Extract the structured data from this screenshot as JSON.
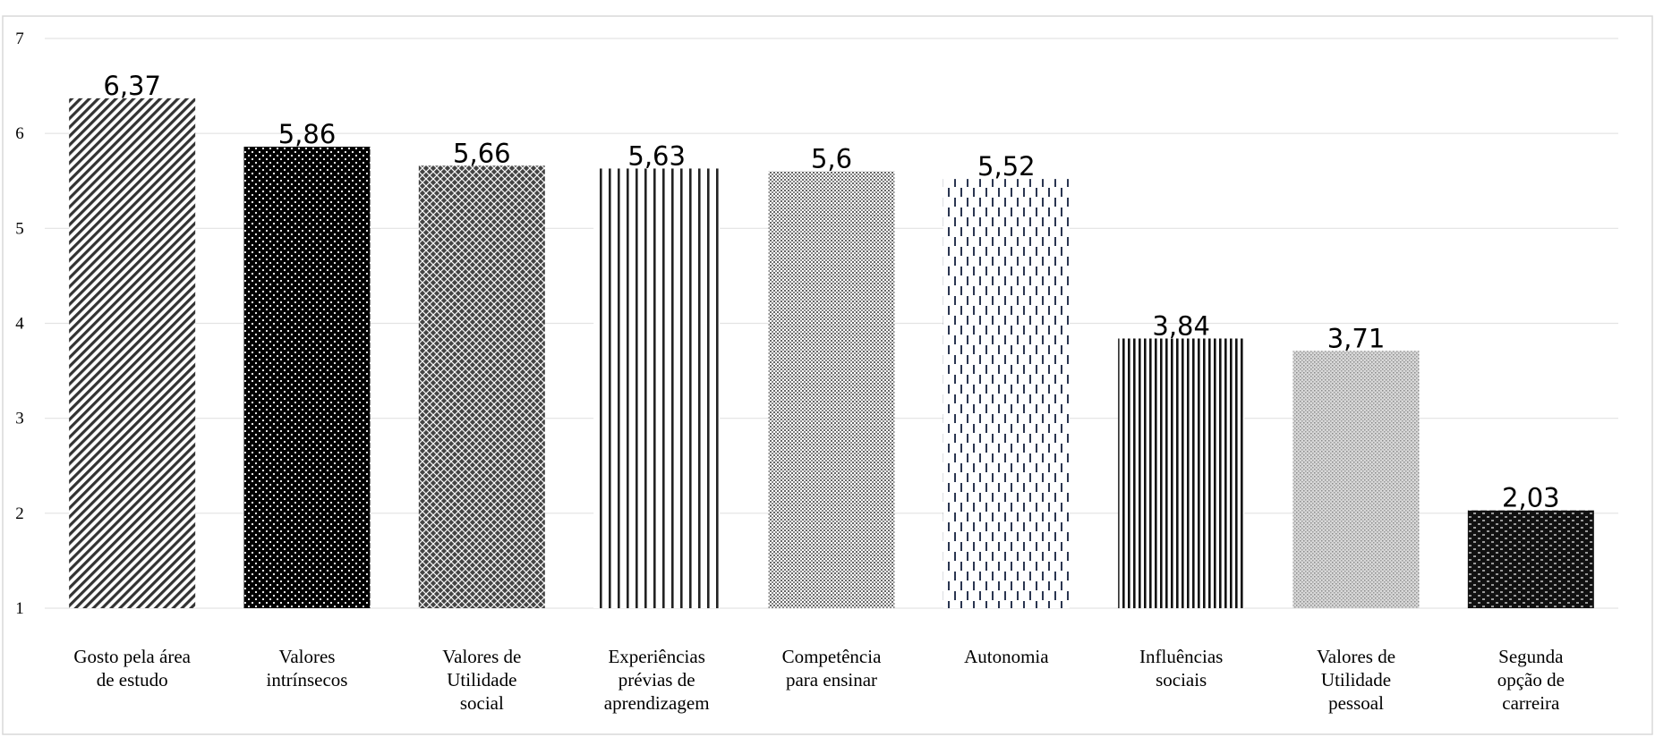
{
  "chart_data": {
    "type": "bar",
    "title": "",
    "xlabel": "",
    "ylabel": "",
    "ylim": [
      1,
      7
    ],
    "yticks": [
      1,
      2,
      3,
      4,
      5,
      6,
      7
    ],
    "grid": true,
    "legend": "none",
    "categories": [
      [
        "Gosto pela área",
        "de estudo"
      ],
      [
        "Valores",
        "intrínsecos"
      ],
      [
        "Valores de",
        "Utilidade",
        "social"
      ],
      [
        "Experiências",
        "prévias de",
        "aprendizagem"
      ],
      [
        "Competência",
        "para ensinar"
      ],
      [
        "Autonomia"
      ],
      [
        "Influências",
        "sociais"
      ],
      [
        "Valores de",
        "Utilidade",
        "pessoal"
      ],
      [
        "Segunda",
        "opção de",
        "carreira"
      ]
    ],
    "values": [
      6.37,
      5.86,
      5.66,
      5.63,
      5.6,
      5.52,
      3.84,
      3.71,
      2.03
    ],
    "data_labels": [
      "6,37",
      "5,86",
      "5,66",
      "5,63",
      "5,6",
      "5,52",
      "3,84",
      "3,71",
      "2,03"
    ],
    "bar_patterns": [
      "diagonal-hatch",
      "dark-dotted",
      "diamond-lattice",
      "vertical-lines",
      "light-dotted",
      "dashed-vertical",
      "narrow-vertical",
      "light-grey-dots",
      "dark-brick"
    ]
  }
}
